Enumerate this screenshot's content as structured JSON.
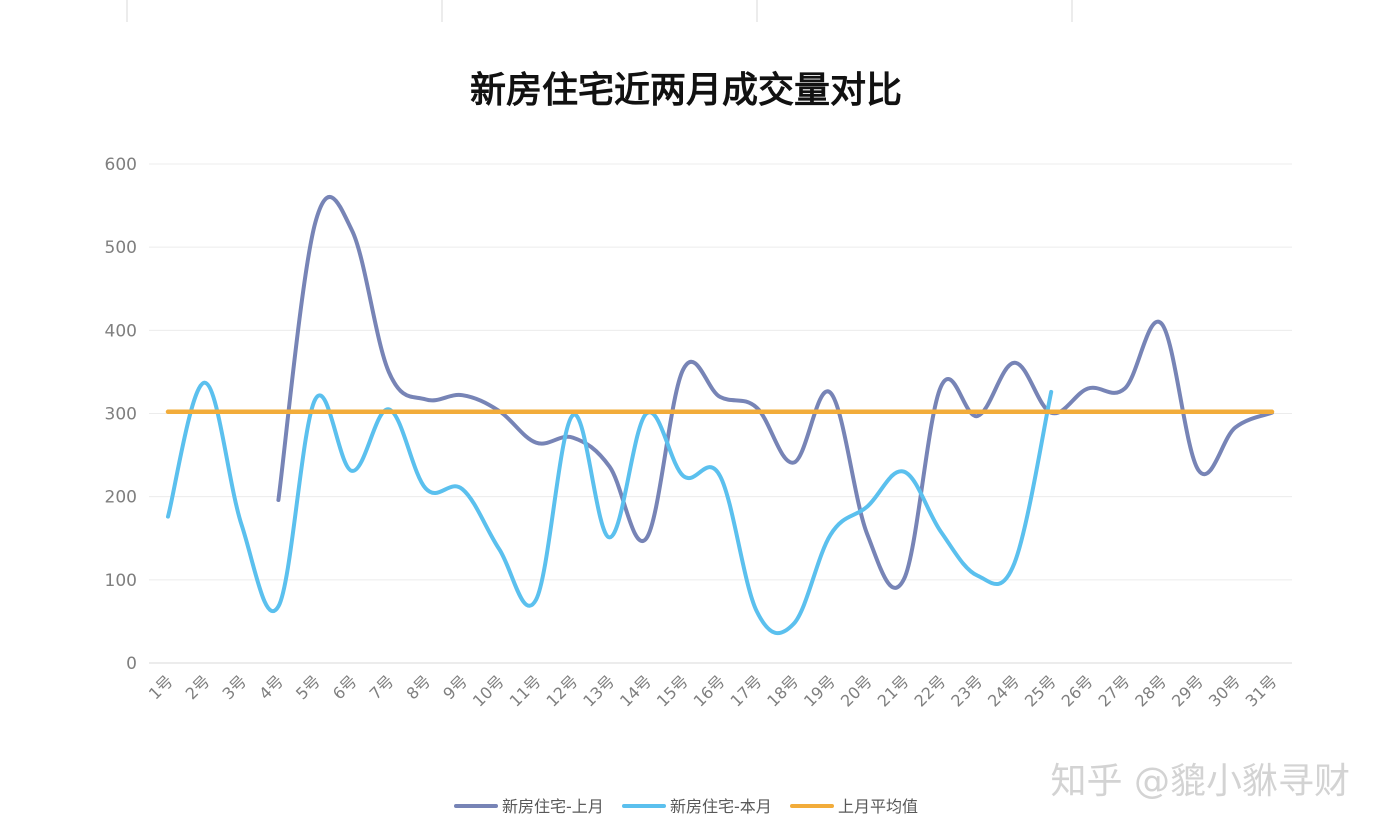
{
  "chart_data": {
    "type": "line",
    "title": "新房住宅近两月成交量对比",
    "xlabel": "",
    "ylabel": "",
    "ylim": [
      0,
      600
    ],
    "yticks": [
      0,
      100,
      200,
      300,
      400,
      500,
      600
    ],
    "grid": true,
    "legend_position": "bottom",
    "categories": [
      "1号",
      "2号",
      "3号",
      "4号",
      "5号",
      "6号",
      "7号",
      "8号",
      "9号",
      "10号",
      "11号",
      "12号",
      "13号",
      "14号",
      "15号",
      "16号",
      "17号",
      "18号",
      "19号",
      "20号",
      "21号",
      "22号",
      "23号",
      "24号",
      "25号",
      "26号",
      "27号",
      "28号",
      "29号",
      "30号",
      "31号"
    ],
    "series": [
      {
        "name": "新房住宅-上月",
        "color": "#7784b6",
        "values": [
          null,
          null,
          null,
          196,
          529,
          520,
          350,
          317,
          322,
          303,
          265,
          271,
          236,
          150,
          353,
          320,
          307,
          241,
          325,
          155,
          101,
          332,
          297,
          361,
          301,
          330,
          330,
          408,
          232,
          283,
          301
        ]
      },
      {
        "name": "新房住宅-本月",
        "color": "#5bc0ee",
        "values": [
          176,
          337,
          166,
          68,
          317,
          231,
          305,
          210,
          209,
          137,
          76,
          298,
          151,
          300,
          225,
          225,
          62,
          47,
          154,
          188,
          230,
          158,
          105,
          120,
          326,
          null,
          null,
          null,
          null,
          null,
          null
        ]
      },
      {
        "name": "上月平均值",
        "color": "#f2ac3a",
        "values": [
          302,
          302,
          302,
          302,
          302,
          302,
          302,
          302,
          302,
          302,
          302,
          302,
          302,
          302,
          302,
          302,
          302,
          302,
          302,
          302,
          302,
          302,
          302,
          302,
          302,
          302,
          302,
          302,
          302,
          302,
          302
        ]
      }
    ]
  },
  "watermark": "知乎 @貔小貅寻财"
}
